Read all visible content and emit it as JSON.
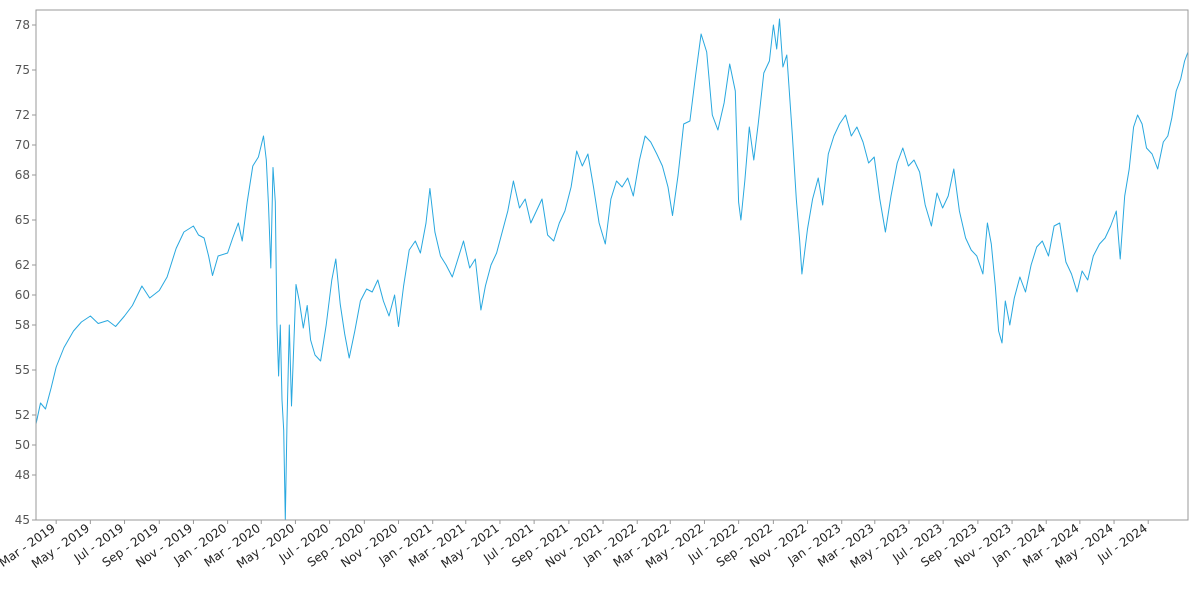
{
  "chart_data": {
    "type": "line",
    "title": "",
    "xlabel": "",
    "ylabel": "",
    "xlim": [
      "2019-01-24",
      "2024-09-10"
    ],
    "ylim": [
      45,
      79
    ],
    "grid": false,
    "legend": "none",
    "y_ticks": [
      45,
      48,
      50,
      52,
      55,
      58,
      60,
      62,
      65,
      68,
      70,
      72,
      75,
      78
    ],
    "x_ticks": [
      {
        "label": "Mar - 2019",
        "date": "2019-03-01"
      },
      {
        "label": "May - 2019",
        "date": "2019-05-01"
      },
      {
        "label": "Jul - 2019",
        "date": "2019-07-01"
      },
      {
        "label": "Sep - 2019",
        "date": "2019-09-01"
      },
      {
        "label": "Nov - 2019",
        "date": "2019-11-01"
      },
      {
        "label": "Jan - 2020",
        "date": "2020-01-01"
      },
      {
        "label": "Mar - 2020",
        "date": "2020-03-01"
      },
      {
        "label": "May - 2020",
        "date": "2020-05-01"
      },
      {
        "label": "Jul - 2020",
        "date": "2020-07-01"
      },
      {
        "label": "Sep - 2020",
        "date": "2020-09-01"
      },
      {
        "label": "Nov - 2020",
        "date": "2020-11-01"
      },
      {
        "label": "Jan - 2021",
        "date": "2021-01-01"
      },
      {
        "label": "Mar - 2021",
        "date": "2021-03-01"
      },
      {
        "label": "May - 2021",
        "date": "2021-05-01"
      },
      {
        "label": "Jul - 2021",
        "date": "2021-07-01"
      },
      {
        "label": "Sep - 2021",
        "date": "2021-09-01"
      },
      {
        "label": "Nov - 2021",
        "date": "2021-11-01"
      },
      {
        "label": "Jan - 2022",
        "date": "2022-01-01"
      },
      {
        "label": "Mar - 2022",
        "date": "2022-03-01"
      },
      {
        "label": "May - 2022",
        "date": "2022-05-01"
      },
      {
        "label": "Jul - 2022",
        "date": "2022-07-01"
      },
      {
        "label": "Sep - 2022",
        "date": "2022-09-01"
      },
      {
        "label": "Nov - 2022",
        "date": "2022-11-01"
      },
      {
        "label": "Jan - 2023",
        "date": "2023-01-01"
      },
      {
        "label": "Mar - 2023",
        "date": "2023-03-01"
      },
      {
        "label": "May - 2023",
        "date": "2023-05-01"
      },
      {
        "label": "Jul - 2023",
        "date": "2023-07-01"
      },
      {
        "label": "Sep - 2023",
        "date": "2023-09-01"
      },
      {
        "label": "Nov - 2023",
        "date": "2023-11-01"
      },
      {
        "label": "Jan - 2024",
        "date": "2024-01-01"
      },
      {
        "label": "Mar - 2024",
        "date": "2024-03-01"
      },
      {
        "label": "May - 2024",
        "date": "2024-05-01"
      },
      {
        "label": "Jul - 2024",
        "date": "2024-07-01"
      }
    ],
    "series": [
      {
        "color": "#29a8df",
        "points": [
          [
            "2019-01-24",
            51.4
          ],
          [
            "2019-02-01",
            52.8
          ],
          [
            "2019-02-10",
            52.4
          ],
          [
            "2019-02-20",
            53.8
          ],
          [
            "2019-03-01",
            55.2
          ],
          [
            "2019-03-15",
            56.5
          ],
          [
            "2019-04-01",
            57.6
          ],
          [
            "2019-04-15",
            58.2
          ],
          [
            "2019-05-01",
            58.6
          ],
          [
            "2019-05-15",
            58.1
          ],
          [
            "2019-06-01",
            58.3
          ],
          [
            "2019-06-15",
            57.9
          ],
          [
            "2019-07-01",
            58.6
          ],
          [
            "2019-07-15",
            59.3
          ],
          [
            "2019-08-01",
            60.6
          ],
          [
            "2019-08-15",
            59.8
          ],
          [
            "2019-09-01",
            60.3
          ],
          [
            "2019-09-15",
            61.2
          ],
          [
            "2019-10-01",
            63.1
          ],
          [
            "2019-10-15",
            64.2
          ],
          [
            "2019-11-01",
            64.6
          ],
          [
            "2019-11-10",
            64.0
          ],
          [
            "2019-11-20",
            63.8
          ],
          [
            "2019-11-28",
            62.6
          ],
          [
            "2019-12-05",
            61.3
          ],
          [
            "2019-12-15",
            62.6
          ],
          [
            "2020-01-01",
            62.8
          ],
          [
            "2020-01-10",
            63.8
          ],
          [
            "2020-01-20",
            64.8
          ],
          [
            "2020-01-27",
            63.6
          ],
          [
            "2020-02-05",
            66.2
          ],
          [
            "2020-02-15",
            68.6
          ],
          [
            "2020-02-25",
            69.2
          ],
          [
            "2020-03-05",
            70.6
          ],
          [
            "2020-03-10",
            69.0
          ],
          [
            "2020-03-14",
            66.0
          ],
          [
            "2020-03-18",
            61.8
          ],
          [
            "2020-03-22",
            68.5
          ],
          [
            "2020-03-26",
            66.2
          ],
          [
            "2020-03-29",
            58.1
          ],
          [
            "2020-04-01",
            54.6
          ],
          [
            "2020-04-04",
            58.0
          ],
          [
            "2020-04-07",
            53.0
          ],
          [
            "2020-04-10",
            51.0
          ],
          [
            "2020-04-13",
            45.0
          ],
          [
            "2020-04-16",
            51.5
          ],
          [
            "2020-04-20",
            58.0
          ],
          [
            "2020-04-24",
            52.6
          ],
          [
            "2020-04-28",
            56.5
          ],
          [
            "2020-05-02",
            60.7
          ],
          [
            "2020-05-08",
            59.6
          ],
          [
            "2020-05-15",
            57.8
          ],
          [
            "2020-05-22",
            59.3
          ],
          [
            "2020-05-28",
            57.0
          ],
          [
            "2020-06-05",
            56.0
          ],
          [
            "2020-06-15",
            55.6
          ],
          [
            "2020-06-25",
            58.0
          ],
          [
            "2020-07-05",
            61.0
          ],
          [
            "2020-07-12",
            62.4
          ],
          [
            "2020-07-20",
            59.4
          ],
          [
            "2020-07-28",
            57.4
          ],
          [
            "2020-08-05",
            55.8
          ],
          [
            "2020-08-15",
            57.6
          ],
          [
            "2020-08-25",
            59.6
          ],
          [
            "2020-09-05",
            60.4
          ],
          [
            "2020-09-15",
            60.2
          ],
          [
            "2020-09-25",
            61.0
          ],
          [
            "2020-10-05",
            59.6
          ],
          [
            "2020-10-15",
            58.6
          ],
          [
            "2020-10-25",
            60.0
          ],
          [
            "2020-11-01",
            57.9
          ],
          [
            "2020-11-10",
            60.6
          ],
          [
            "2020-11-20",
            63.0
          ],
          [
            "2020-12-01",
            63.6
          ],
          [
            "2020-12-10",
            62.8
          ],
          [
            "2020-12-20",
            64.8
          ],
          [
            "2020-12-27",
            67.1
          ],
          [
            "2021-01-05",
            64.2
          ],
          [
            "2021-01-15",
            62.6
          ],
          [
            "2021-01-25",
            62.0
          ],
          [
            "2021-02-05",
            61.2
          ],
          [
            "2021-02-15",
            62.4
          ],
          [
            "2021-02-25",
            63.6
          ],
          [
            "2021-03-08",
            61.8
          ],
          [
            "2021-03-18",
            62.4
          ],
          [
            "2021-03-28",
            59.0
          ],
          [
            "2021-04-05",
            60.6
          ],
          [
            "2021-04-15",
            62.0
          ],
          [
            "2021-04-25",
            62.8
          ],
          [
            "2021-05-05",
            64.2
          ],
          [
            "2021-05-15",
            65.6
          ],
          [
            "2021-05-25",
            67.6
          ],
          [
            "2021-06-05",
            65.8
          ],
          [
            "2021-06-15",
            66.4
          ],
          [
            "2021-06-25",
            64.8
          ],
          [
            "2021-07-05",
            65.6
          ],
          [
            "2021-07-15",
            66.4
          ],
          [
            "2021-07-25",
            64.0
          ],
          [
            "2021-08-05",
            63.6
          ],
          [
            "2021-08-15",
            64.8
          ],
          [
            "2021-08-25",
            65.6
          ],
          [
            "2021-09-05",
            67.2
          ],
          [
            "2021-09-15",
            69.6
          ],
          [
            "2021-09-25",
            68.6
          ],
          [
            "2021-10-05",
            69.4
          ],
          [
            "2021-10-15",
            67.2
          ],
          [
            "2021-10-25",
            64.8
          ],
          [
            "2021-11-05",
            63.4
          ],
          [
            "2021-11-15",
            66.4
          ],
          [
            "2021-11-25",
            67.6
          ],
          [
            "2021-12-05",
            67.2
          ],
          [
            "2021-12-15",
            67.8
          ],
          [
            "2021-12-25",
            66.6
          ],
          [
            "2022-01-05",
            69.0
          ],
          [
            "2022-01-15",
            70.6
          ],
          [
            "2022-01-25",
            70.2
          ],
          [
            "2022-02-05",
            69.4
          ],
          [
            "2022-02-15",
            68.6
          ],
          [
            "2022-02-25",
            67.2
          ],
          [
            "2022-03-05",
            65.3
          ],
          [
            "2022-03-15",
            68.0
          ],
          [
            "2022-03-25",
            71.4
          ],
          [
            "2022-04-05",
            71.6
          ],
          [
            "2022-04-15",
            74.6
          ],
          [
            "2022-04-25",
            77.4
          ],
          [
            "2022-05-05",
            76.2
          ],
          [
            "2022-05-15",
            72.0
          ],
          [
            "2022-05-25",
            71.0
          ],
          [
            "2022-06-05",
            72.8
          ],
          [
            "2022-06-15",
            75.4
          ],
          [
            "2022-06-25",
            73.6
          ],
          [
            "2022-07-01",
            66.2
          ],
          [
            "2022-07-05",
            65.0
          ],
          [
            "2022-07-12",
            67.6
          ],
          [
            "2022-07-20",
            71.2
          ],
          [
            "2022-07-28",
            69.0
          ],
          [
            "2022-08-05",
            71.4
          ],
          [
            "2022-08-15",
            74.8
          ],
          [
            "2022-08-25",
            75.6
          ],
          [
            "2022-09-01",
            78.0
          ],
          [
            "2022-09-07",
            76.4
          ],
          [
            "2022-09-12",
            78.4
          ],
          [
            "2022-09-18",
            75.2
          ],
          [
            "2022-09-25",
            76.0
          ],
          [
            "2022-10-05",
            70.6
          ],
          [
            "2022-10-12",
            66.4
          ],
          [
            "2022-10-18",
            63.6
          ],
          [
            "2022-10-22",
            61.4
          ],
          [
            "2022-11-01",
            64.4
          ],
          [
            "2022-11-10",
            66.4
          ],
          [
            "2022-11-20",
            67.8
          ],
          [
            "2022-11-28",
            66.0
          ],
          [
            "2022-12-08",
            69.4
          ],
          [
            "2022-12-18",
            70.6
          ],
          [
            "2022-12-28",
            71.4
          ],
          [
            "2023-01-08",
            72.0
          ],
          [
            "2023-01-18",
            70.6
          ],
          [
            "2023-01-28",
            71.2
          ],
          [
            "2023-02-08",
            70.2
          ],
          [
            "2023-02-18",
            68.8
          ],
          [
            "2023-02-28",
            69.2
          ],
          [
            "2023-03-10",
            66.4
          ],
          [
            "2023-03-20",
            64.2
          ],
          [
            "2023-03-30",
            66.6
          ],
          [
            "2023-04-10",
            68.8
          ],
          [
            "2023-04-20",
            69.8
          ],
          [
            "2023-04-30",
            68.6
          ],
          [
            "2023-05-10",
            69.0
          ],
          [
            "2023-05-20",
            68.2
          ],
          [
            "2023-05-30",
            66.0
          ],
          [
            "2023-06-10",
            64.6
          ],
          [
            "2023-06-20",
            66.8
          ],
          [
            "2023-06-30",
            65.8
          ],
          [
            "2023-07-10",
            66.6
          ],
          [
            "2023-07-20",
            68.4
          ],
          [
            "2023-07-30",
            65.6
          ],
          [
            "2023-08-10",
            63.8
          ],
          [
            "2023-08-20",
            63.0
          ],
          [
            "2023-08-30",
            62.6
          ],
          [
            "2023-09-10",
            61.4
          ],
          [
            "2023-09-18",
            64.8
          ],
          [
            "2023-09-25",
            63.4
          ],
          [
            "2023-10-02",
            60.6
          ],
          [
            "2023-10-08",
            57.6
          ],
          [
            "2023-10-14",
            56.8
          ],
          [
            "2023-10-20",
            59.6
          ],
          [
            "2023-10-28",
            58.0
          ],
          [
            "2023-11-05",
            59.8
          ],
          [
            "2023-11-15",
            61.2
          ],
          [
            "2023-11-25",
            60.2
          ],
          [
            "2023-12-05",
            62.0
          ],
          [
            "2023-12-15",
            63.2
          ],
          [
            "2023-12-25",
            63.6
          ],
          [
            "2024-01-05",
            62.6
          ],
          [
            "2024-01-15",
            64.6
          ],
          [
            "2024-01-25",
            64.8
          ],
          [
            "2024-02-05",
            62.2
          ],
          [
            "2024-02-15",
            61.4
          ],
          [
            "2024-02-25",
            60.2
          ],
          [
            "2024-03-05",
            61.6
          ],
          [
            "2024-03-15",
            61.0
          ],
          [
            "2024-03-25",
            62.6
          ],
          [
            "2024-04-05",
            63.4
          ],
          [
            "2024-04-15",
            63.8
          ],
          [
            "2024-04-25",
            64.6
          ],
          [
            "2024-05-05",
            65.6
          ],
          [
            "2024-05-12",
            62.4
          ],
          [
            "2024-05-20",
            66.6
          ],
          [
            "2024-05-28",
            68.4
          ],
          [
            "2024-06-05",
            71.2
          ],
          [
            "2024-06-12",
            72.0
          ],
          [
            "2024-06-20",
            71.4
          ],
          [
            "2024-06-28",
            69.8
          ],
          [
            "2024-07-08",
            69.4
          ],
          [
            "2024-07-18",
            68.4
          ],
          [
            "2024-07-28",
            70.2
          ],
          [
            "2024-08-05",
            70.6
          ],
          [
            "2024-08-12",
            71.8
          ],
          [
            "2024-08-20",
            73.6
          ],
          [
            "2024-08-28",
            74.4
          ],
          [
            "2024-09-04",
            75.6
          ],
          [
            "2024-09-10",
            76.2
          ]
        ]
      }
    ]
  }
}
